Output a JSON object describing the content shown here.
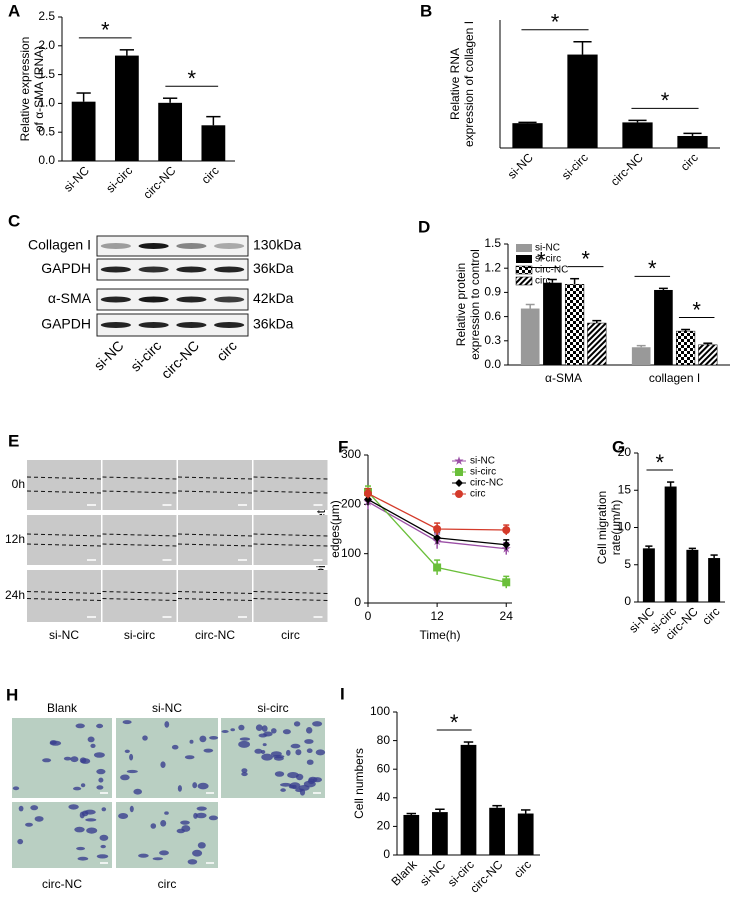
{
  "chart_data": [
    {
      "panel": "A",
      "type": "bar",
      "ylabel": [
        "Relative expression",
        "of α-SMA (RNA)"
      ],
      "categories": [
        "si-NC",
        "si-circ",
        "circ-NC",
        "circ"
      ],
      "values": [
        1.03,
        1.83,
        1.01,
        0.62
      ],
      "errors": [
        0.15,
        0.1,
        0.08,
        0.15
      ],
      "color": "#000000",
      "ylim": [
        0,
        2.5
      ],
      "yticks": [
        {
          "value": 0,
          "label": "0.0"
        },
        {
          "value": 0.5,
          "label": "0.5"
        },
        {
          "value": 1,
          "label": "1.0"
        },
        {
          "value": 1.5,
          "label": "1.5"
        },
        {
          "value": 2,
          "label": "2.0"
        },
        {
          "value": 2.5,
          "label": "2.5"
        }
      ],
      "significance": [
        {
          "label": "*",
          "pair": [
            0,
            1
          ]
        },
        {
          "label": "*",
          "pair": [
            2,
            3
          ]
        }
      ]
    },
    {
      "panel": "B",
      "type": "bar",
      "ylabel": [
        "Relative RNA",
        "expression of collagen I"
      ],
      "categories": [
        "si-NC",
        "si-circ",
        "circ-NC",
        "circ"
      ],
      "values": [
        0.97,
        3.65,
        1.0,
        0.47
      ],
      "errors": [
        0.03,
        0.5,
        0.08,
        0.1
      ],
      "color": "#000000",
      "ylim": [
        0,
        5
      ],
      "significance": [
        {
          "label": "*",
          "pair": [
            0,
            1
          ]
        },
        {
          "label": "*",
          "pair": [
            2,
            3
          ]
        }
      ]
    },
    {
      "panel": "D",
      "type": "bar",
      "ylabel": [
        "Relative protein",
        "expression to control"
      ],
      "categories": [
        "α-SMA",
        "collagen I"
      ],
      "series": [
        {
          "name": "si-NC",
          "color": "#999999",
          "values": [
            0.7,
            0.22
          ],
          "errors": [
            0.05,
            0.02
          ]
        },
        {
          "name": "si-circ",
          "color": "#000000",
          "values": [
            1.02,
            0.93
          ],
          "errors": [
            0.04,
            0.02
          ]
        },
        {
          "name": "circ-NC",
          "color": "#000000",
          "pattern": "checker",
          "values": [
            1.0,
            0.42
          ],
          "errors": [
            0.07,
            0.02
          ]
        },
        {
          "name": "circ",
          "color": "#000000",
          "pattern": "hatch",
          "values": [
            0.52,
            0.25
          ],
          "errors": [
            0.03,
            0.02
          ]
        }
      ],
      "ylim": [
        0,
        1.5
      ],
      "yticks": [
        {
          "value": 0,
          "label": "0.0"
        },
        {
          "value": 0.3,
          "label": "0.3"
        },
        {
          "value": 0.6,
          "label": "0.6"
        },
        {
          "value": 0.9,
          "label": "0.9"
        },
        {
          "value": 1.2,
          "label": "1.2"
        },
        {
          "value": 1.5,
          "label": "1.5"
        }
      ],
      "legend": "top-left",
      "significance": [
        {
          "label": "*",
          "group": 0,
          "pair": [
            0,
            1
          ]
        },
        {
          "label": "*",
          "group": 0,
          "pair": [
            2,
            3
          ]
        },
        {
          "label": "*",
          "group": 1,
          "pair": [
            0,
            1
          ]
        },
        {
          "label": "*",
          "group": 1,
          "pair": [
            2,
            3
          ]
        }
      ]
    },
    {
      "panel": "F",
      "type": "line",
      "ylabel": [
        "Distance between",
        "edges(μm)"
      ],
      "xlabel": "Time(h)",
      "x": [
        0,
        12,
        24
      ],
      "series": [
        {
          "name": "si-NC",
          "color": "#9b4fa6",
          "marker": "star",
          "values": [
            205,
            125,
            110
          ],
          "errors": [
            15,
            15,
            12
          ]
        },
        {
          "name": "si-circ",
          "color": "#6abf3a",
          "marker": "square",
          "values": [
            225,
            72,
            42
          ],
          "errors": [
            12,
            15,
            12
          ]
        },
        {
          "name": "circ-NC",
          "color": "#000000",
          "marker": "diamond",
          "values": [
            210,
            132,
            118
          ],
          "errors": [
            12,
            12,
            10
          ]
        },
        {
          "name": "circ",
          "color": "#d43a2a",
          "marker": "circle",
          "values": [
            222,
            150,
            148
          ],
          "errors": [
            10,
            12,
            10
          ]
        }
      ],
      "xlim": [
        0,
        25
      ],
      "xticks": [
        0,
        12,
        24
      ],
      "ylim": [
        0,
        300
      ],
      "yticks": [
        0,
        100,
        200,
        300
      ],
      "legend": "top-right"
    },
    {
      "panel": "G",
      "type": "bar",
      "ylabel": [
        "Cell migration",
        "rate(μm/h)"
      ],
      "categories": [
        "si-NC",
        "si-circ",
        "circ-NC",
        "circ"
      ],
      "values": [
        7.2,
        15.5,
        7.0,
        5.9
      ],
      "errors": [
        0.3,
        0.6,
        0.2,
        0.4
      ],
      "color": "#000000",
      "ylim": [
        0,
        20
      ],
      "yticks": [
        0,
        5,
        10,
        15,
        20
      ],
      "significance": [
        {
          "label": "*",
          "pair": [
            0,
            1
          ]
        }
      ]
    },
    {
      "panel": "I",
      "type": "bar",
      "ylabel": [
        "Cell numbers"
      ],
      "categories": [
        "Blank",
        "si-NC",
        "si-circ",
        "circ-NC",
        "circ"
      ],
      "values": [
        28,
        30,
        77,
        33,
        29
      ],
      "errors": [
        1,
        2,
        2,
        1.5,
        2.5
      ],
      "color": "#000000",
      "ylim": [
        0,
        100
      ],
      "yticks": [
        0,
        20,
        40,
        60,
        80,
        100
      ],
      "significance": [
        {
          "label": "*",
          "pair": [
            1,
            2
          ]
        }
      ]
    }
  ],
  "panels": [
    {
      "panel": "C",
      "rows": [
        "Collagen I",
        "GAPDH",
        "α-SMA",
        "GAPDH"
      ],
      "sizes": [
        "130kDa",
        "36kDa",
        "42kDa",
        "36kDa"
      ],
      "lanes": [
        "si-NC",
        "si-circ",
        "circ-NC",
        "circ"
      ]
    },
    {
      "panel": "E",
      "times": [
        "0h",
        "12h",
        "24h"
      ],
      "lanes": [
        "si-NC",
        "si-circ",
        "circ-NC",
        "circ"
      ]
    },
    {
      "panel": "H",
      "groups": [
        "Blank",
        "si-NC",
        "si-circ",
        "circ-NC",
        "circ"
      ]
    }
  ]
}
